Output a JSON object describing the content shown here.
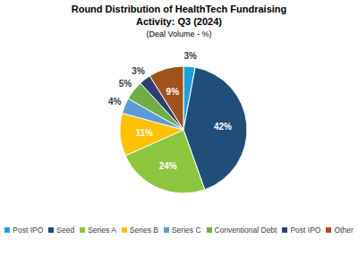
{
  "chart_data": {
    "type": "pie",
    "title": "Round Distribution of HealthTech Fundraising Activity: Q3 (2024)",
    "subtitle": "(Deal Volume - %)",
    "categories": [
      "Post IPO",
      "Seed",
      "Series A",
      "Series B",
      "Series C",
      "Conventional Debt",
      "Post IPO",
      "Other"
    ],
    "values": [
      3,
      42,
      24,
      11,
      4,
      5,
      3,
      9
    ],
    "value_labels": [
      "3%",
      "42%",
      "24%",
      "11%",
      "4%",
      "5%",
      "3%",
      "9%"
    ],
    "colors": [
      "#1e9fda",
      "#1f4e79",
      "#8cc63f",
      "#ffc000",
      "#5b9bd5",
      "#70ad47",
      "#2e3f70",
      "#a0521d"
    ],
    "data_labels": true,
    "legend": "bottom"
  }
}
